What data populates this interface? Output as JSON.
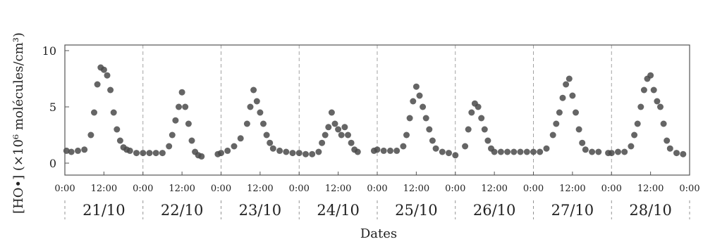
{
  "chart_data": {
    "type": "scatter",
    "title": "",
    "xlabel": "Dates",
    "ylabel": "[HO•] (×10⁶ molécules/cm³)",
    "ylim": [
      0,
      10
    ],
    "y_ticks": [
      0,
      5,
      10
    ],
    "y_tick_labels": [
      "0",
      "5",
      "10"
    ],
    "x_tick_labels": [
      "0:00",
      "12:00",
      "0:00",
      "12:00",
      "0:00",
      "12:00",
      "0:00",
      "12:00",
      "0:00",
      "12:00",
      "0:00",
      "12:00",
      "0:00",
      "12:00",
      "0:00",
      "12:00",
      "0:00"
    ],
    "x_ticks_hours": [
      0,
      12,
      24,
      36,
      48,
      60,
      72,
      84,
      96,
      108,
      120,
      132,
      144,
      156,
      168,
      180,
      192
    ],
    "xlim_hours": [
      0,
      192
    ],
    "x_unit": "hours from 21/10 0:00",
    "day_labels": [
      "21/10",
      "22/10",
      "23/10",
      "24/10",
      "25/10",
      "26/10",
      "27/10",
      "28/10"
    ],
    "grid": "vertical dashed lines at midnight",
    "marker_color": "#4a4a4a",
    "series": [
      {
        "points": [
          [
            0.5,
            1.1
          ],
          [
            2,
            1.0
          ],
          [
            4,
            1.1
          ],
          [
            6,
            1.2
          ],
          [
            8,
            2.5
          ],
          [
            9,
            4.5
          ],
          [
            10,
            7.0
          ],
          [
            11,
            8.5
          ],
          [
            12,
            8.3
          ],
          [
            13,
            7.8
          ],
          [
            14,
            6.5
          ],
          [
            15,
            4.5
          ],
          [
            16,
            3.0
          ],
          [
            17,
            2.0
          ],
          [
            18,
            1.4
          ],
          [
            19,
            1.2
          ],
          [
            20,
            1.1
          ],
          [
            22,
            0.9
          ],
          [
            24,
            0.9
          ],
          [
            26,
            0.9
          ],
          [
            28,
            0.9
          ],
          [
            30,
            0.9
          ],
          [
            32,
            1.5
          ],
          [
            33,
            2.5
          ],
          [
            34,
            3.8
          ],
          [
            35,
            5.0
          ],
          [
            36,
            6.3
          ],
          [
            37,
            5.0
          ],
          [
            38,
            3.5
          ],
          [
            39,
            2.0
          ],
          [
            40,
            1.0
          ],
          [
            41,
            0.7
          ],
          [
            42,
            0.6
          ],
          [
            47,
            0.8
          ],
          [
            48,
            0.9
          ],
          [
            50,
            1.1
          ],
          [
            52,
            1.5
          ],
          [
            54,
            2.2
          ],
          [
            56,
            3.5
          ],
          [
            57,
            5.0
          ],
          [
            58,
            6.5
          ],
          [
            59,
            5.5
          ],
          [
            60,
            4.5
          ],
          [
            61,
            3.5
          ],
          [
            62,
            2.5
          ],
          [
            63,
            1.8
          ],
          [
            64,
            1.3
          ],
          [
            66,
            1.1
          ],
          [
            68,
            1.0
          ],
          [
            70,
            0.9
          ],
          [
            72,
            0.9
          ],
          [
            74,
            0.8
          ],
          [
            76,
            0.8
          ],
          [
            78,
            1.0
          ],
          [
            79,
            1.8
          ],
          [
            80,
            2.5
          ],
          [
            81,
            3.2
          ],
          [
            82,
            4.5
          ],
          [
            83,
            3.5
          ],
          [
            84,
            3.0
          ],
          [
            85,
            2.5
          ],
          [
            86,
            3.2
          ],
          [
            87,
            2.5
          ],
          [
            88,
            1.8
          ],
          [
            89,
            1.2
          ],
          [
            90,
            1.0
          ],
          [
            95,
            1.1
          ],
          [
            96,
            1.2
          ],
          [
            98,
            1.1
          ],
          [
            100,
            1.1
          ],
          [
            102,
            1.1
          ],
          [
            104,
            1.5
          ],
          [
            105,
            2.5
          ],
          [
            106,
            4.0
          ],
          [
            107,
            5.5
          ],
          [
            108,
            6.8
          ],
          [
            109,
            6.0
          ],
          [
            110,
            5.0
          ],
          [
            111,
            4.0
          ],
          [
            112,
            3.0
          ],
          [
            113,
            2.0
          ],
          [
            114,
            1.3
          ],
          [
            116,
            1.0
          ],
          [
            118,
            0.9
          ],
          [
            120,
            0.7
          ],
          [
            123,
            1.5
          ],
          [
            124,
            3.0
          ],
          [
            125,
            4.5
          ],
          [
            126,
            5.3
          ],
          [
            127,
            5.0
          ],
          [
            128,
            4.0
          ],
          [
            129,
            3.0
          ],
          [
            130,
            2.0
          ],
          [
            131,
            1.3
          ],
          [
            132,
            1.0
          ],
          [
            134,
            1.0
          ],
          [
            136,
            1.0
          ],
          [
            138,
            1.0
          ],
          [
            140,
            1.0
          ],
          [
            142,
            1.0
          ],
          [
            144,
            1.0
          ],
          [
            146,
            1.0
          ],
          [
            148,
            1.3
          ],
          [
            150,
            2.5
          ],
          [
            151,
            3.5
          ],
          [
            152,
            4.5
          ],
          [
            153,
            5.8
          ],
          [
            154,
            7.0
          ],
          [
            155,
            7.5
          ],
          [
            156,
            6.0
          ],
          [
            157,
            4.5
          ],
          [
            158,
            3.0
          ],
          [
            159,
            1.8
          ],
          [
            160,
            1.2
          ],
          [
            162,
            1.0
          ],
          [
            164,
            1.0
          ],
          [
            167,
            0.9
          ],
          [
            168,
            0.9
          ],
          [
            170,
            1.0
          ],
          [
            172,
            1.0
          ],
          [
            174,
            1.5
          ],
          [
            175,
            2.5
          ],
          [
            176,
            3.5
          ],
          [
            177,
            5.0
          ],
          [
            178,
            6.5
          ],
          [
            179,
            7.5
          ],
          [
            180,
            7.8
          ],
          [
            181,
            6.5
          ],
          [
            182,
            5.5
          ],
          [
            183,
            5.0
          ],
          [
            184,
            3.5
          ],
          [
            185,
            2.0
          ],
          [
            186,
            1.3
          ],
          [
            188,
            0.9
          ],
          [
            190,
            0.8
          ]
        ]
      }
    ]
  }
}
